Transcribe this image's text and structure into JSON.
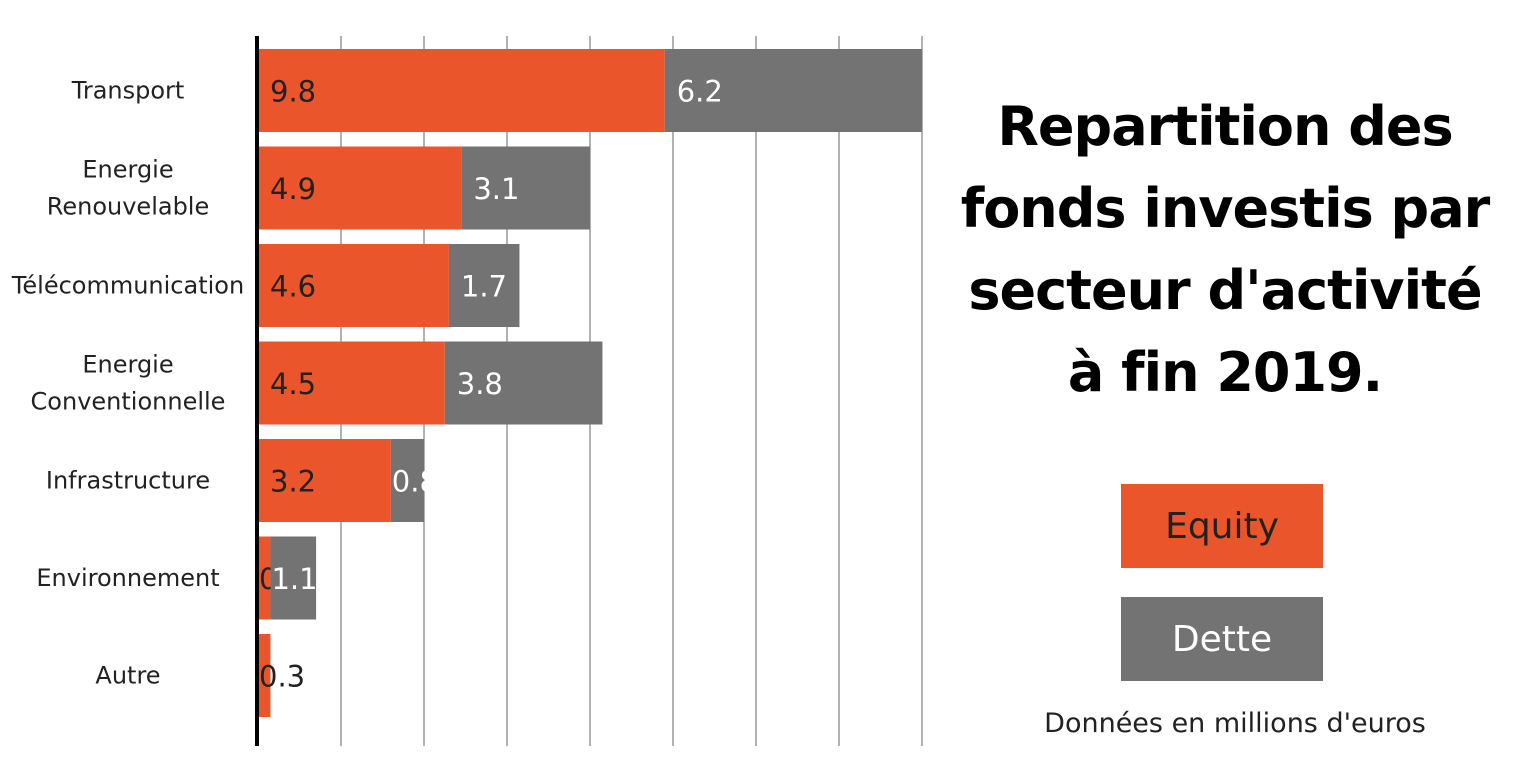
{
  "chart_data": {
    "type": "bar",
    "orientation": "horizontal",
    "stacked": true,
    "title": "Repartition des fonds investis par secteur d'activité à fin 2019.",
    "title_lines": [
      "Repartition des",
      "fonds investis par",
      "secteur d'activité",
      "à fin 2019."
    ],
    "categories": [
      [
        "Transport"
      ],
      [
        "Energie",
        "Renouvelable"
      ],
      [
        "Télécommunication"
      ],
      [
        "Energie",
        "Conventionnelle"
      ],
      [
        "Infrastructure"
      ],
      [
        "Environnement"
      ],
      [
        "Autre"
      ]
    ],
    "series": [
      {
        "name": "Equity",
        "color": "#EB552B",
        "label_color": "#222222",
        "values": [
          9.8,
          4.9,
          4.6,
          4.5,
          3.2,
          0.3,
          0.3
        ],
        "labels": [
          "9.8",
          "4.9",
          "4.6",
          "4.5",
          "3.2",
          "0.3",
          "0.3"
        ]
      },
      {
        "name": "Dette",
        "color": "#737373",
        "label_color": "#ffffff",
        "values": [
          6.2,
          3.1,
          1.7,
          3.8,
          0.8,
          1.1,
          null
        ],
        "labels": [
          "6.2",
          "3.1",
          "1.7",
          "3.8",
          "0.8",
          "1.1",
          ""
        ]
      }
    ],
    "xlim": [
      0,
      16
    ],
    "grid": true,
    "legend_position": "right",
    "note": "Données en millions d'euros"
  }
}
